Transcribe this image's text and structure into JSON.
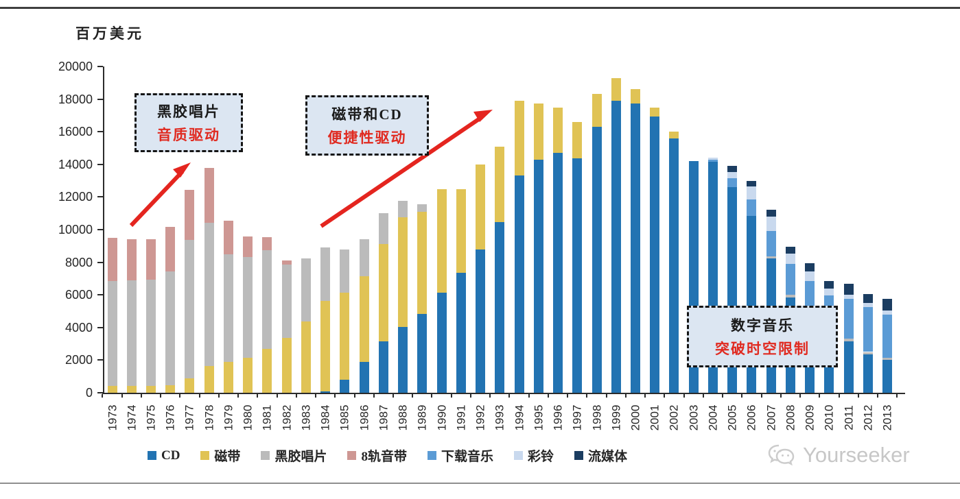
{
  "page": {
    "unit_label": "百万美元",
    "watermark_text": "Yourseeker"
  },
  "accents": {
    "arrow_red": "#e4251f",
    "annotation_red": "#e02a20",
    "annotation_bg": "#dce6f2",
    "axis_color": "#2b2b2b"
  },
  "chart_data": {
    "type": "bar",
    "stacked": true,
    "title": "",
    "ylabel": "百万美元",
    "xlabel": "",
    "ylim": [
      0,
      20000
    ],
    "ytick_step": 2000,
    "grid": false,
    "legend_position": "bottom",
    "categories": [
      "1973",
      "1974",
      "1975",
      "1976",
      "1977",
      "1978",
      "1979",
      "1980",
      "1981",
      "1982",
      "1983",
      "1984",
      "1985",
      "1986",
      "1987",
      "1988",
      "1989",
      "1990",
      "1991",
      "1992",
      "1993",
      "1994",
      "1995",
      "1996",
      "1997",
      "1998",
      "1999",
      "2000",
      "2001",
      "2002",
      "2003",
      "2004",
      "2005",
      "2006",
      "2007",
      "2008",
      "2009",
      "2010",
      "2011",
      "2012",
      "2013"
    ],
    "series": [
      {
        "name": "CD",
        "color": "#2273b2",
        "values": [
          0,
          0,
          0,
          0,
          0,
          0,
          0,
          0,
          0,
          0,
          0,
          100,
          800,
          1900,
          3150,
          4050,
          4850,
          6150,
          7350,
          8800,
          10450,
          13300,
          14300,
          14700,
          14350,
          16300,
          17900,
          17750,
          16950,
          15600,
          14200,
          14150,
          12600,
          10850,
          8250,
          5850,
          4800,
          3400,
          3150,
          2350,
          2000
        ]
      },
      {
        "name": "磁带",
        "color": "#e0c355",
        "values": [
          400,
          400,
          400,
          450,
          900,
          1650,
          1900,
          2150,
          2700,
          3350,
          4350,
          5550,
          5350,
          5250,
          5950,
          6700,
          6250,
          6350,
          5150,
          5200,
          4650,
          4600,
          3450,
          2800,
          2250,
          2000,
          1400,
          850,
          550,
          400,
          0,
          0,
          0,
          0,
          0,
          0,
          0,
          0,
          0,
          0,
          0
        ]
      },
      {
        "name": "黑胶唱片",
        "color": "#bbbbbb",
        "values": [
          6450,
          6500,
          6550,
          7000,
          8450,
          8750,
          6600,
          6150,
          6050,
          4500,
          3900,
          3250,
          2650,
          2250,
          1900,
          1000,
          450,
          0,
          0,
          0,
          0,
          0,
          0,
          0,
          0,
          0,
          0,
          0,
          0,
          0,
          0,
          0,
          0,
          0,
          100,
          150,
          150,
          150,
          150,
          150,
          150
        ]
      },
      {
        "name": "8轨音带",
        "color": "#ce9793",
        "values": [
          2650,
          2500,
          2450,
          2700,
          3100,
          3400,
          2050,
          1300,
          800,
          250,
          0,
          0,
          0,
          0,
          0,
          0,
          0,
          0,
          0,
          0,
          0,
          0,
          0,
          0,
          0,
          0,
          0,
          0,
          0,
          0,
          0,
          0,
          0,
          0,
          0,
          0,
          0,
          0,
          0,
          0,
          0
        ]
      },
      {
        "name": "下载音乐",
        "color": "#5b9bd5",
        "values": [
          0,
          0,
          0,
          0,
          0,
          0,
          0,
          0,
          0,
          0,
          0,
          0,
          0,
          0,
          0,
          0,
          0,
          0,
          0,
          0,
          0,
          0,
          0,
          0,
          0,
          0,
          0,
          0,
          0,
          0,
          0,
          150,
          550,
          1000,
          1550,
          1900,
          1900,
          2400,
          2450,
          2750,
          2650
        ]
      },
      {
        "name": "彩铃",
        "color": "#c9d9ee",
        "values": [
          0,
          0,
          0,
          0,
          0,
          0,
          0,
          0,
          0,
          0,
          0,
          0,
          0,
          0,
          0,
          0,
          0,
          0,
          0,
          0,
          0,
          0,
          0,
          0,
          0,
          0,
          0,
          0,
          0,
          0,
          0,
          100,
          400,
          800,
          900,
          650,
          600,
          450,
          250,
          250,
          250
        ]
      },
      {
        "name": "流媒体",
        "color": "#1b3d61",
        "values": [
          0,
          0,
          0,
          0,
          0,
          0,
          0,
          0,
          0,
          0,
          0,
          0,
          0,
          0,
          0,
          0,
          0,
          0,
          0,
          0,
          0,
          0,
          0,
          0,
          0,
          0,
          0,
          0,
          0,
          0,
          0,
          0,
          350,
          350,
          400,
          400,
          500,
          450,
          700,
          550,
          700
        ]
      }
    ],
    "annotations": [
      {
        "line1": "黑胶唱片",
        "line2": "音质驱动"
      },
      {
        "line1": "磁带和CD",
        "line2": "便捷性驱动"
      },
      {
        "line1": "数字音乐",
        "line2": "突破时空限制"
      }
    ]
  }
}
